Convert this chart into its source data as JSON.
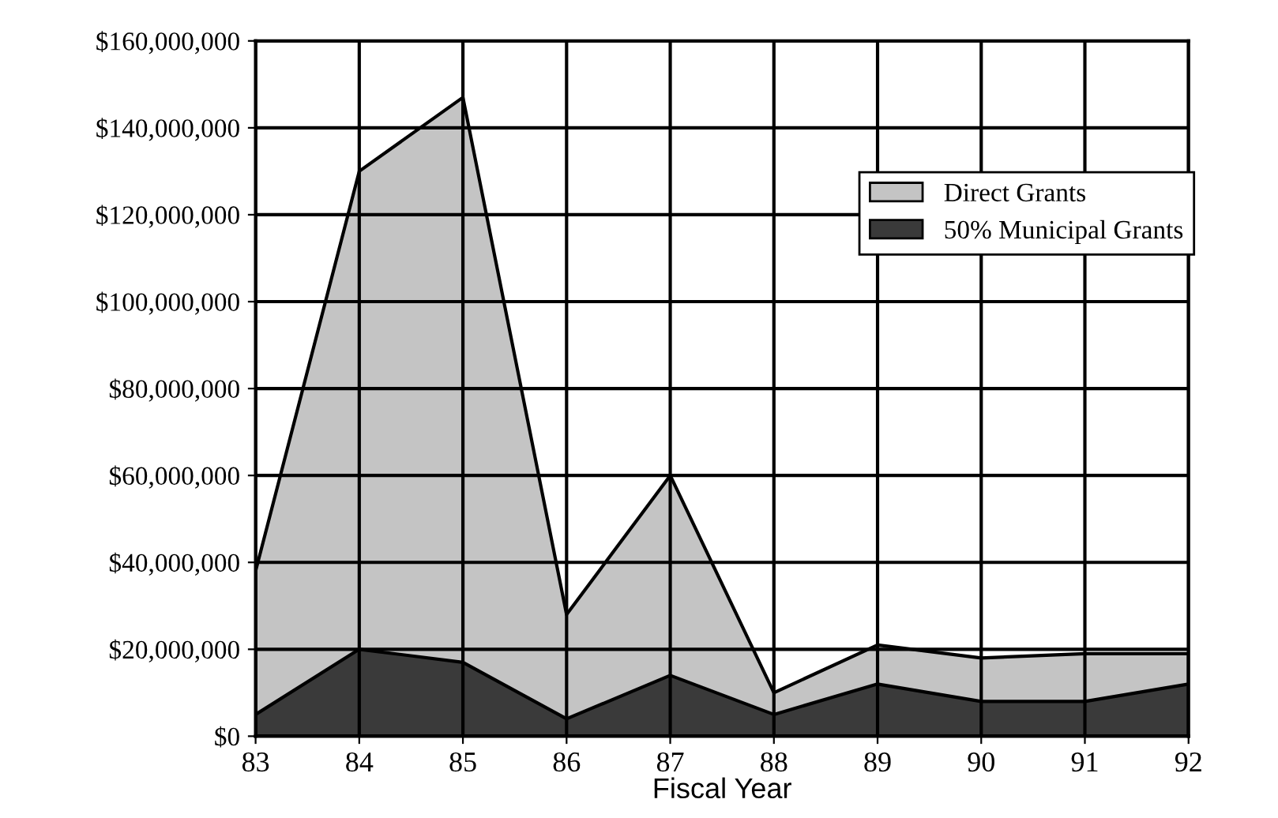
{
  "chart_data": {
    "type": "area",
    "xlabel": "Fiscal Year",
    "categories": [
      "83",
      "84",
      "85",
      "86",
      "87",
      "88",
      "89",
      "90",
      "91",
      "92"
    ],
    "series": [
      {
        "name": "Direct Grants",
        "color": "#c4c4c4",
        "values": [
          38000000,
          130000000,
          147000000,
          28000000,
          60000000,
          10000000,
          21000000,
          18000000,
          19000000,
          19000000
        ]
      },
      {
        "name": "50% Municipal Grants",
        "color": "#3a3a3a",
        "values": [
          5000000,
          20000000,
          17000000,
          4000000,
          14000000,
          5000000,
          12000000,
          8000000,
          8000000,
          12000000
        ]
      }
    ],
    "ylim": [
      0,
      160000000
    ],
    "yticks": [
      {
        "value": 0,
        "label": "$0"
      },
      {
        "value": 20000000,
        "label": "$20,000,000"
      },
      {
        "value": 40000000,
        "label": "$40,000,000"
      },
      {
        "value": 60000000,
        "label": "$60,000,000"
      },
      {
        "value": 80000000,
        "label": "$80,000,000"
      },
      {
        "value": 100000000,
        "label": "$100,000,000"
      },
      {
        "value": 120000000,
        "label": "$120,000,000"
      },
      {
        "value": 140000000,
        "label": "$140,000,000"
      },
      {
        "value": 160000000,
        "label": "$160,000,000"
      }
    ],
    "grid": true,
    "legend": "top right"
  }
}
